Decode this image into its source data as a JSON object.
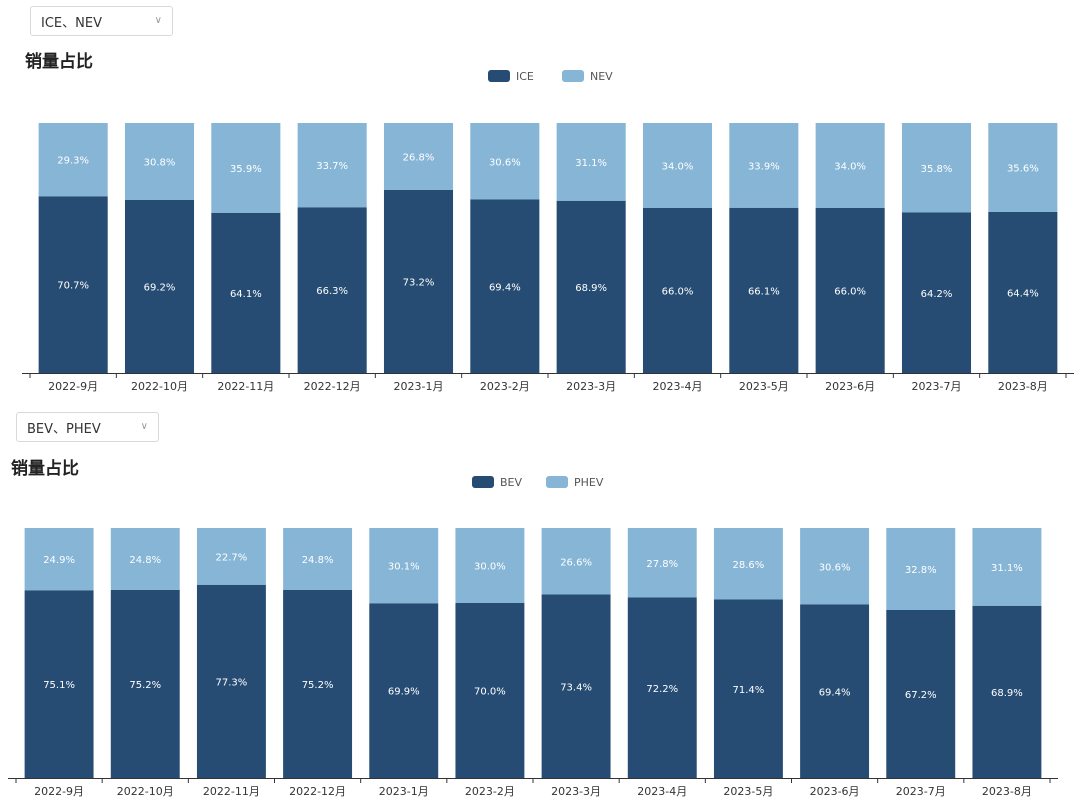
{
  "colors": {
    "dark": "#264c73",
    "light": "#86b5d6",
    "axis": "#333333",
    "label": "#ffffff"
  },
  "chart_data": [
    {
      "type": "bar",
      "stacked": true,
      "dropdown": "ICE、NEV",
      "title": "销量占比",
      "categories": [
        "2022-9月",
        "2022-10月",
        "2022-11月",
        "2022-12月",
        "2023-1月",
        "2023-2月",
        "2023-3月",
        "2023-4月",
        "2023-5月",
        "2023-6月",
        "2023-7月",
        "2023-8月"
      ],
      "series": [
        {
          "name": "ICE",
          "values": [
            70.7,
            69.2,
            64.1,
            66.3,
            73.2,
            69.4,
            68.9,
            66.0,
            66.1,
            66.0,
            64.2,
            64.4
          ],
          "labels": [
            "70.7%",
            "69.2%",
            "64.1%",
            "66.3%",
            "73.2%",
            "69.4%",
            "68.9%",
            "66.0%",
            "66.1%",
            "66.0%",
            "64.2%",
            "64.4%"
          ]
        },
        {
          "name": "NEV",
          "values": [
            29.3,
            30.8,
            35.9,
            33.7,
            26.8,
            30.6,
            31.1,
            34.0,
            33.9,
            34.0,
            35.8,
            35.6
          ],
          "labels": [
            "29.3%",
            "30.8%",
            "35.9%",
            "33.7%",
            "26.8%",
            "30.6%",
            "31.1%",
            "34.0%",
            "33.9%",
            "34.0%",
            "35.8%",
            "35.6%"
          ]
        }
      ],
      "ylim": [
        0,
        100
      ],
      "legend": "top-center"
    },
    {
      "type": "bar",
      "stacked": true,
      "dropdown": "BEV、PHEV",
      "title": "销量占比",
      "categories": [
        "2022-9月",
        "2022-10月",
        "2022-11月",
        "2022-12月",
        "2023-1月",
        "2023-2月",
        "2023-3月",
        "2023-4月",
        "2023-5月",
        "2023-6月",
        "2023-7月",
        "2023-8月"
      ],
      "series": [
        {
          "name": "BEV",
          "values": [
            75.1,
            75.2,
            77.3,
            75.2,
            69.9,
            70.0,
            73.4,
            72.2,
            71.4,
            69.4,
            67.2,
            68.9
          ],
          "labels": [
            "75.1%",
            "75.2%",
            "77.3%",
            "75.2%",
            "69.9%",
            "70.0%",
            "73.4%",
            "72.2%",
            "71.4%",
            "69.4%",
            "67.2%",
            "68.9%"
          ]
        },
        {
          "name": "PHEV",
          "values": [
            24.9,
            24.8,
            22.7,
            24.8,
            30.1,
            30.0,
            26.6,
            27.8,
            28.6,
            30.6,
            32.8,
            31.1
          ],
          "labels": [
            "24.9%",
            "24.8%",
            "22.7%",
            "24.8%",
            "30.1%",
            "30.0%",
            "26.6%",
            "27.8%",
            "28.6%",
            "30.6%",
            "32.8%",
            "31.1%"
          ]
        }
      ],
      "ylim": [
        0,
        100
      ],
      "legend": "top-center"
    }
  ]
}
